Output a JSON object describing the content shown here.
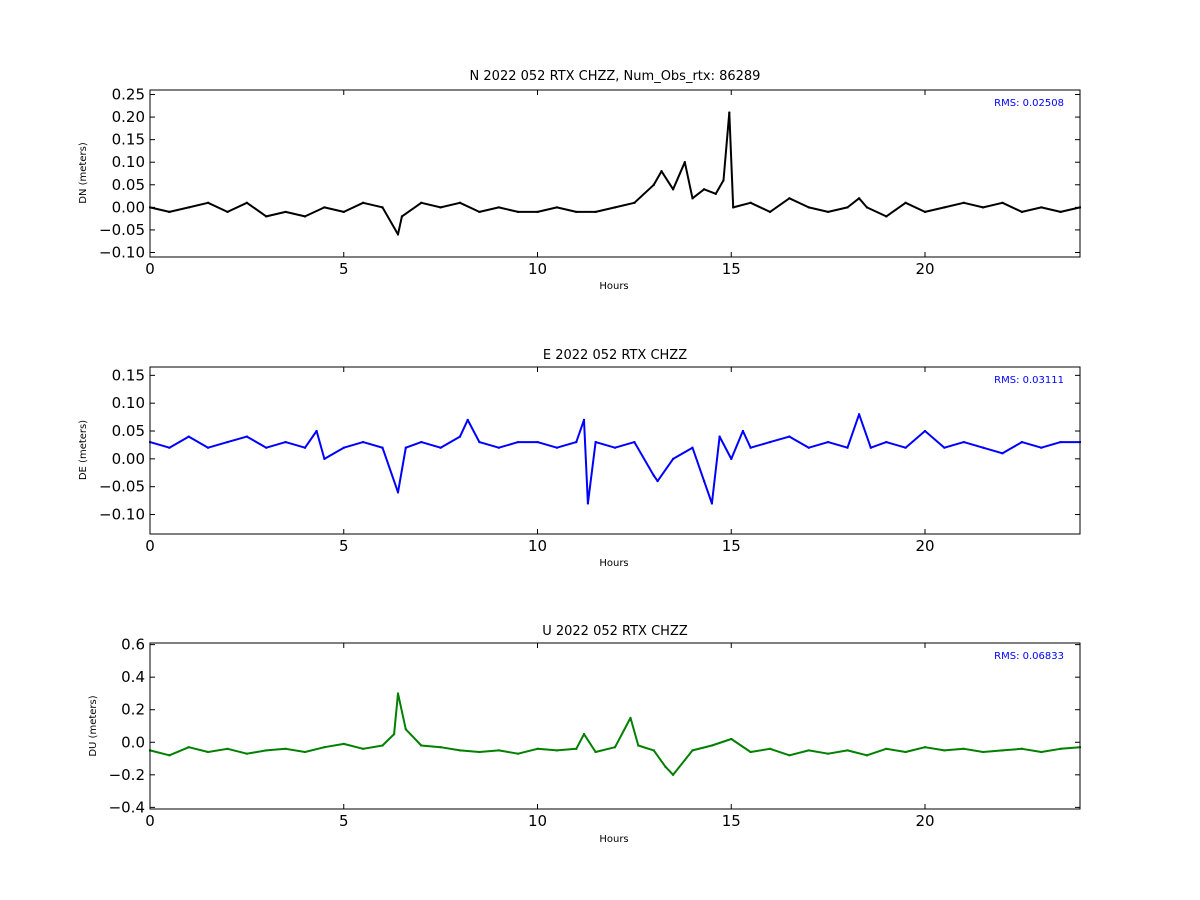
{
  "colors": {
    "panel_n": "#000000",
    "panel_e": "#0000ff",
    "panel_u": "#008000",
    "rms": "#0000ff",
    "axes": "#000000"
  },
  "chart_data": [
    {
      "type": "scatter",
      "title": "N 2022 052 RTX  CHZZ, Num_Obs_rtx: 86289",
      "xlabel": "Hours",
      "ylabel": "DN (meters)",
      "xlim": [
        0,
        24
      ],
      "ylim": [
        -0.11,
        0.26
      ],
      "x_ticks": [
        0,
        5,
        10,
        15,
        20
      ],
      "y_ticks": [
        -0.1,
        -0.05,
        0.0,
        0.05,
        0.1,
        0.15,
        0.2,
        0.25
      ],
      "y_tick_labels": [
        "−0.10",
        "−0.05",
        "0.00",
        "0.05",
        "0.10",
        "0.15",
        "0.20",
        "0.25"
      ],
      "annotation": "RMS:  0.02508",
      "color": "#000000",
      "grid": false,
      "legend": "none",
      "series": [
        {
          "x": [
            0,
            0.5,
            1,
            1.5,
            2,
            2.5,
            3,
            3.5,
            4,
            4.5,
            5,
            5.5,
            6,
            6.4,
            6.5,
            7,
            7.5,
            8,
            8.5,
            9,
            9.5,
            10,
            10.5,
            11,
            11.5,
            12,
            12.5,
            13,
            13.2,
            13.5,
            13.8,
            14,
            14.3,
            14.6,
            14.8,
            14.95,
            15.05,
            15.5,
            16,
            16.5,
            17,
            17.5,
            18,
            18.3,
            18.5,
            19,
            19.5,
            20,
            20.5,
            21,
            21.5,
            22,
            22.5,
            23,
            23.5,
            24
          ],
          "y": [
            0.0,
            -0.01,
            0.0,
            0.01,
            -0.01,
            0.01,
            -0.02,
            -0.01,
            -0.02,
            0.0,
            -0.01,
            0.01,
            0.0,
            -0.06,
            -0.02,
            0.01,
            0.0,
            0.01,
            -0.01,
            0.0,
            -0.01,
            -0.01,
            0.0,
            -0.01,
            -0.01,
            0.0,
            0.01,
            0.05,
            0.08,
            0.04,
            0.1,
            0.02,
            0.04,
            0.03,
            0.06,
            0.21,
            0.0,
            0.01,
            -0.01,
            0.02,
            0.0,
            -0.01,
            0.0,
            0.02,
            0.0,
            -0.02,
            0.01,
            -0.01,
            0.0,
            0.01,
            0.0,
            0.01,
            -0.01,
            0.0,
            -0.01,
            0.0
          ]
        }
      ]
    },
    {
      "type": "scatter",
      "title": "E 2022 052 RTX  CHZZ",
      "xlabel": "Hours",
      "ylabel": "DE (meters)",
      "xlim": [
        0,
        24
      ],
      "ylim": [
        -0.135,
        0.165
      ],
      "x_ticks": [
        0,
        5,
        10,
        15,
        20
      ],
      "y_ticks": [
        -0.1,
        -0.05,
        0.0,
        0.05,
        0.1,
        0.15
      ],
      "y_tick_labels": [
        "−0.10",
        "−0.05",
        "0.00",
        "0.05",
        "0.10",
        "0.15"
      ],
      "annotation": "RMS:  0.03111",
      "color": "#0000ff",
      "grid": false,
      "legend": "none",
      "series": [
        {
          "x": [
            0,
            0.5,
            1,
            1.5,
            2,
            2.5,
            3,
            3.5,
            4,
            4.3,
            4.5,
            5,
            5.5,
            6,
            6.4,
            6.6,
            7,
            7.5,
            8,
            8.2,
            8.5,
            9,
            9.5,
            10,
            10.5,
            11,
            11.2,
            11.3,
            11.5,
            12,
            12.5,
            13,
            13.1,
            13.5,
            14,
            14.3,
            14.5,
            14.7,
            15,
            15.3,
            15.5,
            16,
            16.5,
            17,
            17.5,
            18,
            18.3,
            18.6,
            19,
            19.5,
            20,
            20.5,
            21,
            21.5,
            22,
            22.5,
            23,
            23.5,
            24
          ],
          "y": [
            0.03,
            0.02,
            0.04,
            0.02,
            0.03,
            0.04,
            0.02,
            0.03,
            0.02,
            0.05,
            0.0,
            0.02,
            0.03,
            0.02,
            -0.06,
            0.02,
            0.03,
            0.02,
            0.04,
            0.07,
            0.03,
            0.02,
            0.03,
            0.03,
            0.02,
            0.03,
            0.07,
            -0.08,
            0.03,
            0.02,
            0.03,
            -0.03,
            -0.04,
            0.0,
            0.02,
            -0.04,
            -0.08,
            0.04,
            0.0,
            0.05,
            0.02,
            0.03,
            0.04,
            0.02,
            0.03,
            0.02,
            0.08,
            0.02,
            0.03,
            0.02,
            0.05,
            0.02,
            0.03,
            0.02,
            0.01,
            0.03,
            0.02,
            0.03,
            0.03
          ]
        }
      ]
    },
    {
      "type": "scatter",
      "title": "U 2022 052 RTX  CHZZ",
      "xlabel": "Hours",
      "ylabel": "DU (meters)",
      "xlim": [
        0,
        24
      ],
      "ylim": [
        -0.41,
        0.61
      ],
      "x_ticks": [
        0,
        5,
        10,
        15,
        20
      ],
      "y_ticks": [
        -0.4,
        -0.2,
        0.0,
        0.2,
        0.4,
        0.6
      ],
      "y_tick_labels": [
        "−0.4",
        "−0.2",
        "0.0",
        "0.2",
        "0.4",
        "0.6"
      ],
      "annotation": "RMS:  0.06833",
      "color": "#008000",
      "grid": false,
      "legend": "none",
      "series": [
        {
          "x": [
            0,
            0.5,
            1,
            1.5,
            2,
            2.5,
            3,
            3.5,
            4,
            4.5,
            5,
            5.5,
            6,
            6.3,
            6.4,
            6.6,
            7,
            7.5,
            8,
            8.5,
            9,
            9.5,
            10,
            10.5,
            11,
            11.2,
            11.5,
            12,
            12.4,
            12.6,
            13,
            13.3,
            13.5,
            14,
            14.5,
            15,
            15.5,
            16,
            16.5,
            17,
            17.5,
            18,
            18.5,
            19,
            19.5,
            20,
            20.5,
            21,
            21.5,
            22,
            22.5,
            23,
            23.5,
            24
          ],
          "y": [
            -0.05,
            -0.08,
            -0.03,
            -0.06,
            -0.04,
            -0.07,
            -0.05,
            -0.04,
            -0.06,
            -0.03,
            -0.01,
            -0.04,
            -0.02,
            0.05,
            0.3,
            0.08,
            -0.02,
            -0.03,
            -0.05,
            -0.06,
            -0.05,
            -0.07,
            -0.04,
            -0.05,
            -0.04,
            0.05,
            -0.06,
            -0.03,
            0.15,
            -0.02,
            -0.05,
            -0.15,
            -0.2,
            -0.05,
            -0.02,
            0.02,
            -0.06,
            -0.04,
            -0.08,
            -0.05,
            -0.07,
            -0.05,
            -0.08,
            -0.04,
            -0.06,
            -0.03,
            -0.05,
            -0.04,
            -0.06,
            -0.05,
            -0.04,
            -0.06,
            -0.04,
            -0.03
          ]
        }
      ]
    }
  ]
}
